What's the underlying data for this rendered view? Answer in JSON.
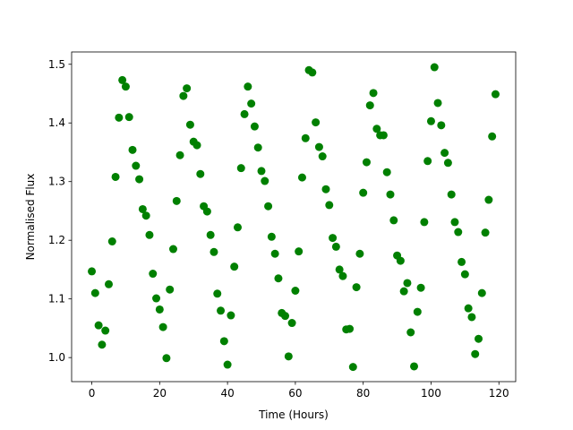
{
  "chart_data": {
    "type": "scatter",
    "xlabel": "Time (Hours)",
    "ylabel": "Normalised Flux",
    "color": "#008000",
    "x": [
      0,
      1,
      2,
      3,
      4,
      5,
      6,
      7,
      8,
      9,
      10,
      11,
      12,
      13,
      14,
      15,
      16,
      17,
      18,
      19,
      20,
      21,
      22,
      23,
      24,
      25,
      26,
      27,
      28,
      29,
      30,
      31,
      32,
      33,
      34,
      35,
      36,
      37,
      38,
      39,
      40,
      41,
      42,
      43,
      44,
      45,
      46,
      47,
      48,
      49,
      50,
      51,
      52,
      53,
      54,
      55,
      56,
      57,
      58,
      59,
      60,
      61,
      62,
      63,
      64,
      65,
      66,
      67,
      68,
      69,
      70,
      71,
      72,
      73,
      74,
      75,
      76,
      77,
      78,
      79,
      80,
      81,
      82,
      83,
      84,
      85,
      86,
      87,
      88,
      89,
      90,
      91,
      92,
      93,
      94,
      95,
      96,
      97,
      98,
      99,
      100,
      101,
      102,
      103,
      104,
      105,
      106,
      107,
      108,
      109,
      110,
      111,
      112,
      113,
      114,
      115,
      116,
      117,
      118,
      119
    ],
    "y": [
      1.147,
      1.11,
      1.055,
      1.022,
      1.046,
      1.125,
      1.198,
      1.308,
      1.409,
      1.473,
      1.462,
      1.41,
      1.354,
      1.327,
      1.304,
      1.253,
      1.242,
      1.209,
      1.143,
      1.101,
      1.082,
      1.052,
      0.999,
      1.116,
      1.185,
      1.267,
      1.345,
      1.446,
      1.459,
      1.397,
      1.368,
      1.362,
      1.313,
      1.258,
      1.249,
      1.209,
      1.18,
      1.109,
      1.08,
      1.028,
      0.988,
      1.072,
      1.155,
      1.222,
      1.323,
      1.415,
      1.462,
      1.433,
      1.394,
      1.358,
      1.318,
      1.301,
      1.258,
      1.206,
      1.177,
      1.135,
      1.076,
      1.071,
      1.002,
      1.059,
      1.114,
      1.181,
      1.307,
      1.374,
      1.49,
      1.486,
      1.401,
      1.359,
      1.343,
      1.287,
      1.26,
      1.204,
      1.189,
      1.15,
      1.139,
      1.048,
      1.049,
      0.984,
      1.12,
      1.177,
      1.281,
      1.333,
      1.43,
      1.451,
      1.39,
      1.379,
      1.379,
      1.316,
      1.278,
      1.234,
      1.174,
      1.165,
      1.113,
      1.127,
      1.043,
      0.985,
      1.078,
      1.119,
      1.231,
      1.335,
      1.403,
      1.495,
      1.434,
      1.396,
      1.349,
      1.332,
      1.278,
      1.231,
      1.214,
      1.163,
      1.142,
      1.084,
      1.069,
      1.006,
      1.032,
      1.11,
      1.213,
      1.269,
      1.377,
      1.449
    ],
    "xlim": [
      -5.95,
      124.95
    ],
    "xticks": [
      0,
      20,
      40,
      60,
      80,
      100,
      120
    ],
    "ylim": [
      0.959,
      1.521
    ],
    "yticks": [
      {
        "value": 1,
        "label": "1.0"
      },
      1.1,
      1.2,
      1.3,
      1.4,
      1.5
    ]
  }
}
